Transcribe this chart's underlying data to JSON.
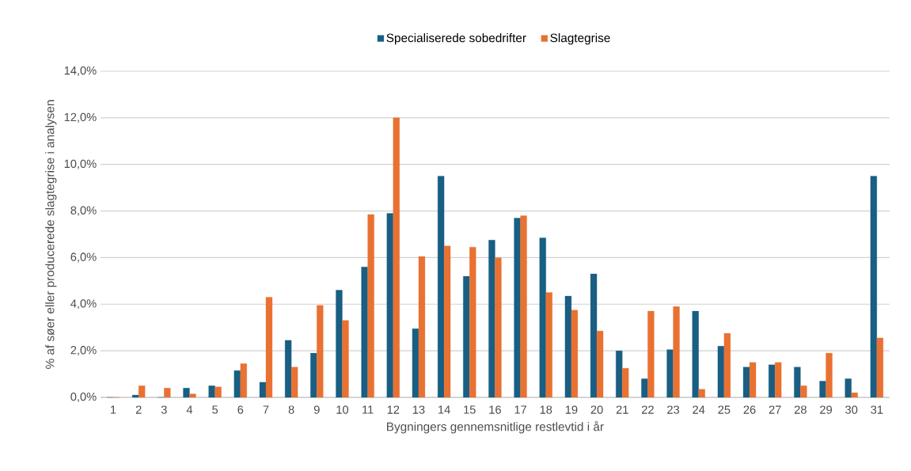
{
  "chart_data": {
    "type": "bar",
    "categories": [
      "1",
      "2",
      "3",
      "4",
      "5",
      "6",
      "7",
      "8",
      "9",
      "10",
      "11",
      "12",
      "13",
      "14",
      "15",
      "16",
      "17",
      "18",
      "19",
      "20",
      "21",
      "22",
      "23",
      "24",
      "25",
      "26",
      "27",
      "28",
      "29",
      "30",
      "31"
    ],
    "series": [
      {
        "name": "Specialiserede sobedrifter",
        "color": "#195e83",
        "values": [
          0,
          0.1,
          0,
          0.4,
          0.5,
          1.15,
          0.65,
          2.45,
          1.9,
          4.6,
          5.6,
          7.9,
          2.95,
          9.5,
          5.2,
          6.75,
          7.7,
          6.85,
          4.35,
          5.3,
          2.0,
          0.8,
          2.05,
          3.7,
          2.2,
          1.3,
          1.4,
          1.3,
          0.7,
          0.8,
          9.5
        ]
      },
      {
        "name": "Slagtegrise",
        "color": "#e97132",
        "values": [
          0,
          0.5,
          0.4,
          0.15,
          0.45,
          1.45,
          4.3,
          1.3,
          3.95,
          3.3,
          7.85,
          12.0,
          6.05,
          6.5,
          6.45,
          6.0,
          7.8,
          4.5,
          3.75,
          2.85,
          1.25,
          3.7,
          3.9,
          0.35,
          2.75,
          1.5,
          1.5,
          0.5,
          1.9,
          0.2,
          2.55
        ]
      }
    ],
    "xlabel": "Bygningers gennemsnitlige  restlevtid i år",
    "ylabel": "% af søer eller producerede slagtegrise i analysen",
    "ylim": [
      0,
      14
    ],
    "yticks": [
      {
        "value": 0,
        "label": "0,0%"
      },
      {
        "value": 2,
        "label": "2,0%"
      },
      {
        "value": 4,
        "label": "4,0%"
      },
      {
        "value": 6,
        "label": "6,0%"
      },
      {
        "value": 8,
        "label": "8,0%"
      },
      {
        "value": 10,
        "label": "10,0%"
      },
      {
        "value": 12,
        "label": "12,0%"
      },
      {
        "value": 14,
        "label": "14,0%"
      }
    ],
    "grid": "y",
    "legend": "top"
  }
}
